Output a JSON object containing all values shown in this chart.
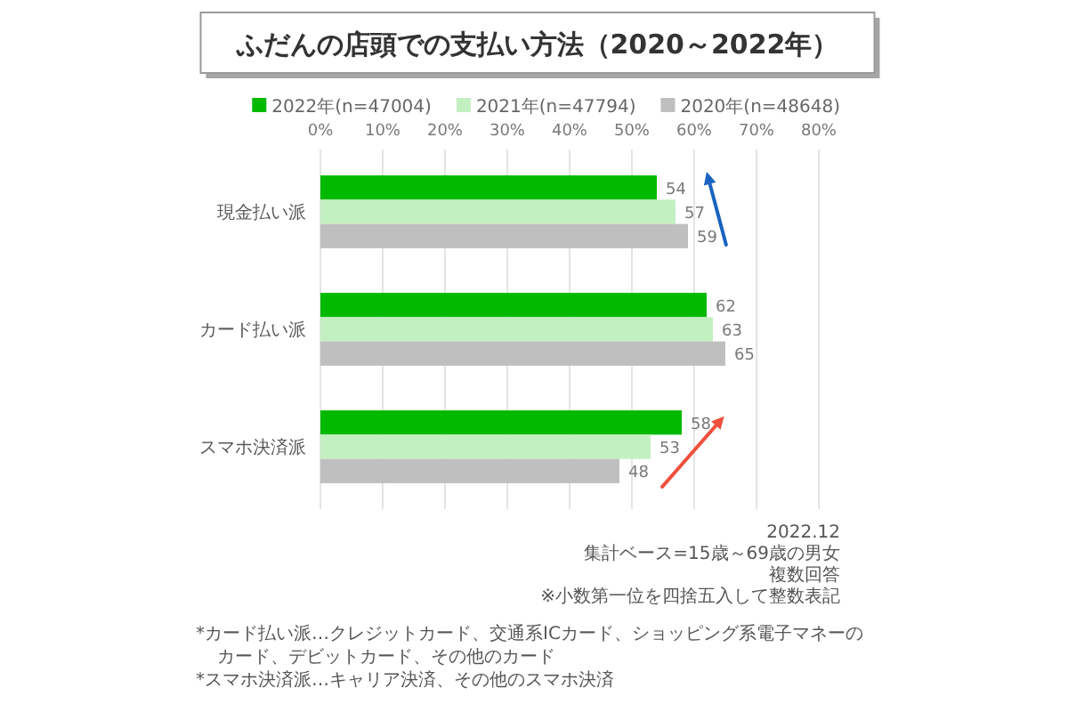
{
  "chart_data": {
    "type": "bar",
    "orientation": "horizontal",
    "title": "ふだんの店頭での支払い方法（2020～2022年）",
    "categories": [
      "現金払い派",
      "カード払い派",
      "スマホ決済派"
    ],
    "series": [
      {
        "name": "2022年(n=47004)",
        "color": "#00b900",
        "values": [
          54,
          62,
          58
        ]
      },
      {
        "name": "2021年(n=47794)",
        "color": "#c3f0c0",
        "values": [
          57,
          63,
          53
        ]
      },
      {
        "name": "2020年(n=48648)",
        "color": "#bfbfbf",
        "values": [
          59,
          65,
          48
        ]
      }
    ],
    "xlim": [
      0,
      80
    ],
    "xticks": [
      {
        "value": 0,
        "label": "0%"
      },
      {
        "value": 10,
        "label": "10%"
      },
      {
        "value": 20,
        "label": "20%"
      },
      {
        "value": 30,
        "label": "30%"
      },
      {
        "value": 40,
        "label": "40%"
      },
      {
        "value": 50,
        "label": "50%"
      },
      {
        "value": 60,
        "label": "60%"
      },
      {
        "value": 70,
        "label": "70%"
      },
      {
        "value": 80,
        "label": "80%"
      }
    ],
    "grid": "x",
    "legend": "top right",
    "data_labels": true,
    "annotations": [
      "2022.12",
      "集計ベース=15歳～69歳の男女",
      "複数回答",
      "※小数第一位を四捨五入して整数表記",
      "*カード払い派…クレジットカード、交通系ICカード、ショッピング系電子マネーのカード、デビットカード、その他のカード",
      "*スマホ決済派…キャリア決済、その他のスマホ決済"
    ]
  }
}
